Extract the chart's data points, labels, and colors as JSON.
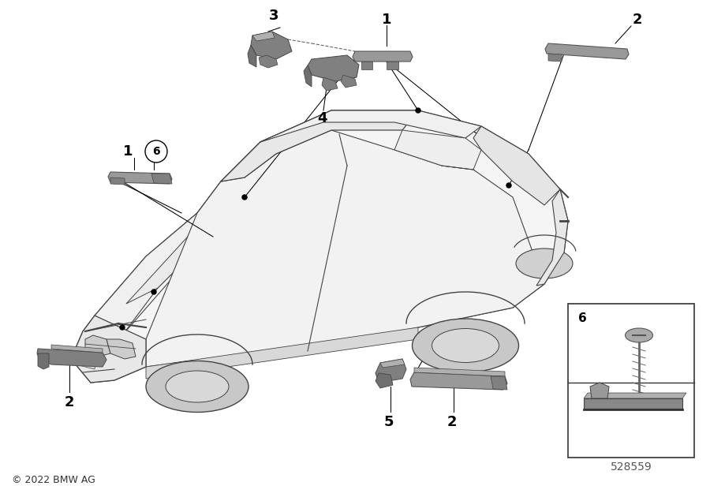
{
  "bg_color": "#ffffff",
  "line_color": "#000000",
  "car_edge": "#444444",
  "part_color_dark": "#808080",
  "part_color_mid": "#999999",
  "part_color_light": "#b0b0b0",
  "copyright": "© 2022 BMW AG",
  "diagram_number": "528559",
  "fig_w": 9.0,
  "fig_h": 6.3,
  "dpi": 100
}
